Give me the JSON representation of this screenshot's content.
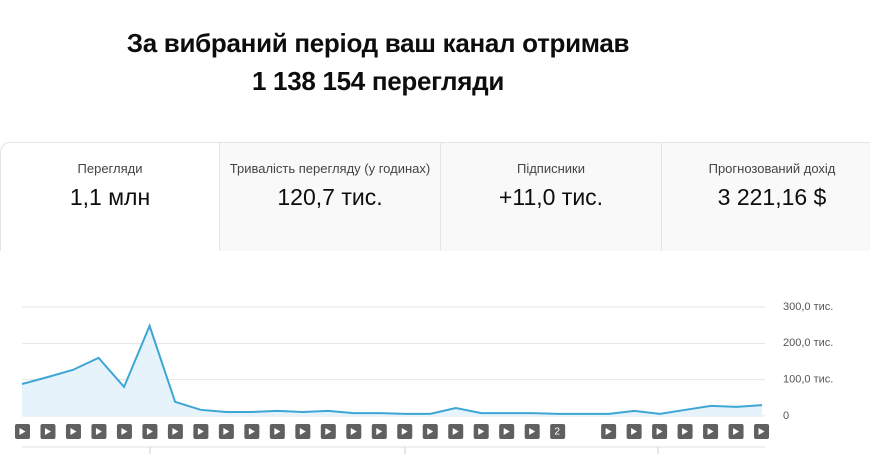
{
  "header": {
    "line1": "За вибраний період ваш канал отримав",
    "line2": "1 138 154 перегляди"
  },
  "tabs": [
    {
      "label": "Перегляди",
      "value": "1,1 млн"
    },
    {
      "label": "Тривалість перегляду (у годинах)",
      "value": "120,7 тис."
    },
    {
      "label": "Підписники",
      "value": "+11,0 тис."
    },
    {
      "label": "Прогнозований дохід",
      "value": "3 221,16 $"
    }
  ],
  "chart_data": {
    "type": "line",
    "values": [
      88000,
      107000,
      127000,
      160000,
      80000,
      248000,
      39000,
      17000,
      11000,
      11000,
      14000,
      11000,
      14000,
      8000,
      8000,
      6000,
      6000,
      22000,
      8000,
      8000,
      8000,
      6000,
      6000,
      6000,
      14000,
      6000,
      17000,
      28000,
      25000,
      30000
    ],
    "color": "#3ea6d4",
    "ylim": [
      0,
      300000
    ],
    "yticks": [
      0,
      {
        "value": 100000,
        "label": "100,0 тис."
      },
      {
        "value": 200000,
        "label": "200,0 тис."
      },
      {
        "value": 300000,
        "label": "300,0 тис."
      }
    ],
    "grid": true,
    "marker_badge": "2"
  }
}
